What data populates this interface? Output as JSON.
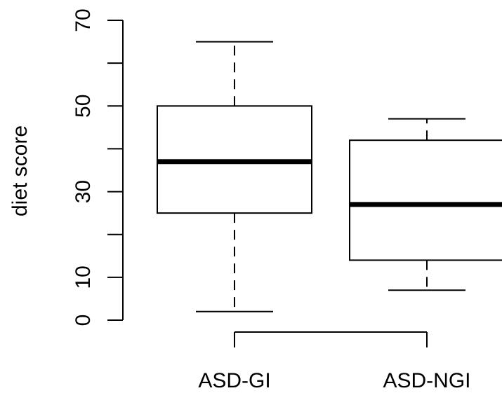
{
  "chart_data": {
    "type": "box",
    "title": "",
    "xlabel": "",
    "ylabel": "diet score",
    "ylim": [
      0,
      70
    ],
    "y_ticks": [
      0,
      10,
      30,
      50,
      70
    ],
    "y_minor_ticks": [
      20,
      40,
      60
    ],
    "categories": [
      "ASD-GI",
      "ASD-NGI"
    ],
    "boxes": [
      {
        "name": "ASD-GI",
        "whisker_low": 2,
        "q1": 25,
        "median": 37,
        "q3": 50,
        "whisker_high": 65
      },
      {
        "name": "ASD-NGI",
        "whisker_low": 7,
        "q1": 14,
        "median": 27,
        "q3": 42,
        "whisker_high": 47
      }
    ],
    "grid": false,
    "legend": "none"
  }
}
